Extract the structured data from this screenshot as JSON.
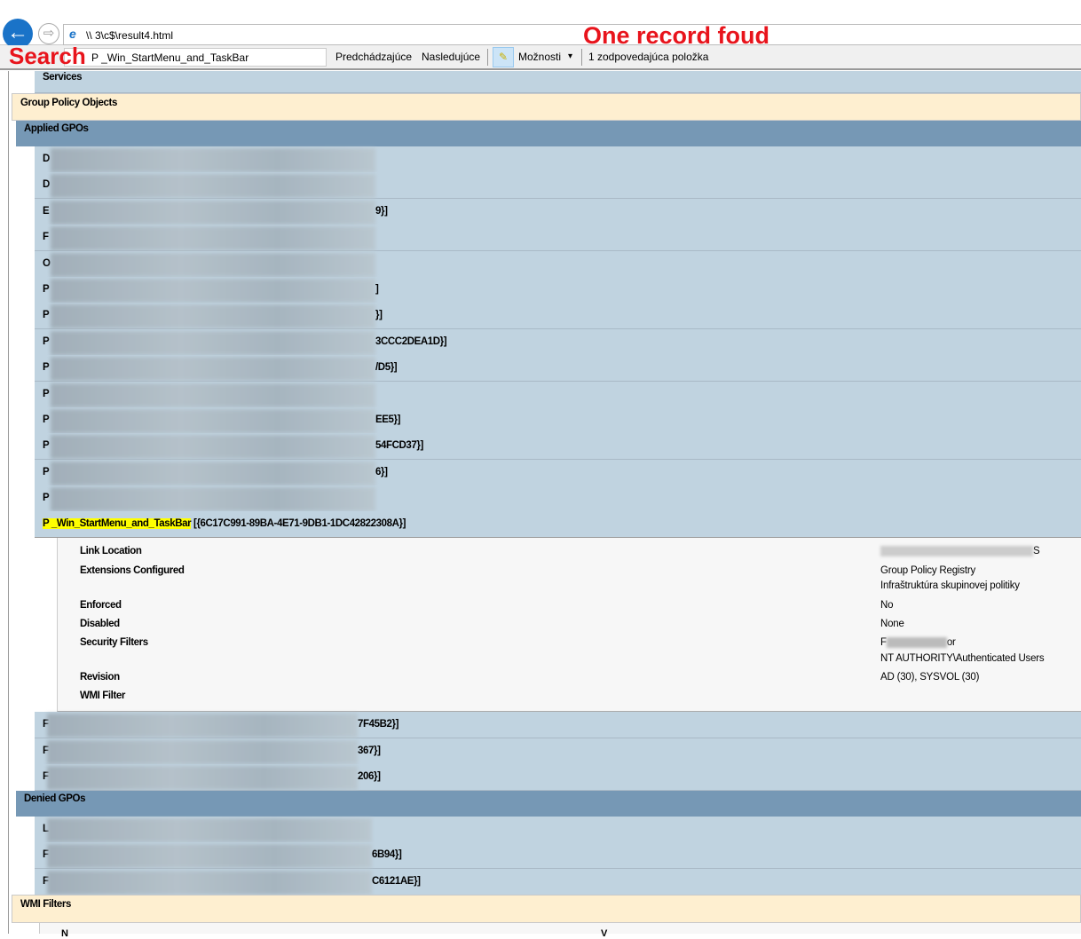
{
  "browser": {
    "url": "\\\\              3\\c$\\result4.html",
    "back_icon": "arrow-left",
    "forward_icon": "arrow-right"
  },
  "annotations": {
    "found": "One record foud",
    "search": "Search"
  },
  "findbar": {
    "label": "Hľadať:",
    "value": "P    _Win_StartMenu_and_TaskBar",
    "prev": "Predchádzajúce",
    "next": "Nasledujúce",
    "options": "Možnosti",
    "options_arrow": "▾",
    "matches": "1 zodpovedajúca položka"
  },
  "report": {
    "services": "Services",
    "gpo_section": "Group Policy Objects",
    "applied_header": "Applied GPOs",
    "applied_rows": [
      {
        "p": "D",
        "s": ""
      },
      {
        "p": "D",
        "s": ""
      },
      {
        "p": "E",
        "s": "9}]"
      },
      {
        "p": "F",
        "s": ""
      },
      {
        "p": "O",
        "s": ""
      },
      {
        "p": "P",
        "s": "]"
      },
      {
        "p": "P",
        "s": "}]"
      },
      {
        "p": "P",
        "s": "3CCC2DEA1D}]"
      },
      {
        "p": "P",
        "s": "/D5}]"
      },
      {
        "p": "P",
        "s": ""
      },
      {
        "p": "P",
        "s": "EE5}]"
      },
      {
        "p": "P",
        "s": "54FCD37}]"
      },
      {
        "p": "P",
        "s": "6}]"
      },
      {
        "p": "P",
        "s": ""
      }
    ],
    "match": {
      "name": "P    _Win_StartMenu_and_TaskBar",
      "guid": " [{6C17C991-89BA-4E71-9DB1-1DC42822308A}]"
    },
    "details": {
      "link_location": "Link Location",
      "link_location_value": "S",
      "extensions": "Extensions Configured",
      "ext1": "Group Policy Registry",
      "ext2": "Infraštruktúra skupinovej politiky",
      "enforced": "Enforced",
      "enforced_value": "No",
      "disabled": "Disabled",
      "disabled_value": "None",
      "security": "Security Filters",
      "sec1_start": "F",
      "sec1_end": "or",
      "sec2": "NT AUTHORITY\\Authenticated Users",
      "revision": "Revision",
      "revision_value": "AD (30), SYSVOL (30)",
      "wmi": "WMI Filter"
    },
    "after_rows": [
      {
        "p": "F",
        "s": "7F45B2}]"
      },
      {
        "p": "F",
        "s": "367}]"
      },
      {
        "p": "F",
        "s": "206}]"
      }
    ],
    "denied_header": "Denied GPOs",
    "denied_rows": [
      {
        "p": "L",
        "s": ""
      },
      {
        "p": "F",
        "s": "6B94}]"
      },
      {
        "p": "F",
        "s": "C6121AE}]"
      }
    ],
    "wmi_section": "WMI Filters",
    "col_name": "N",
    "col_value": "V"
  }
}
